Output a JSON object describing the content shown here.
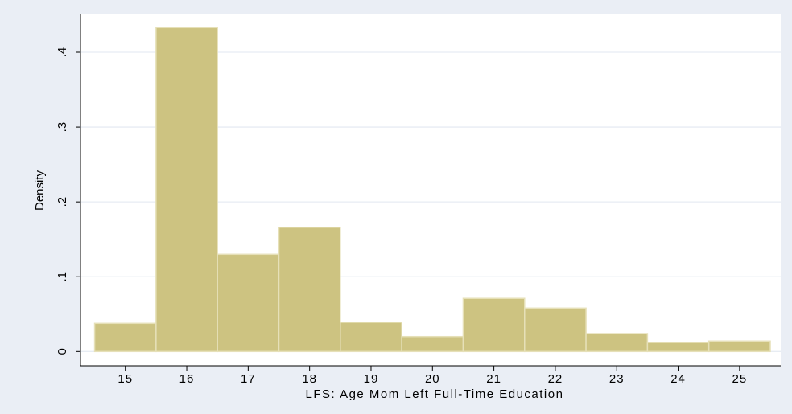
{
  "chart_data": {
    "type": "histogram",
    "x_label": "LFS: Age Mom Left Full-Time Education",
    "y_label": "Density",
    "bins": [
      14.5,
      15.5,
      16.5,
      17.5,
      18.5,
      19.5,
      20.5,
      21.5,
      22.5,
      23.5,
      24.5,
      25.5
    ],
    "values": [
      0.0376,
      0.433,
      0.13,
      0.166,
      0.039,
      0.02,
      0.071,
      0.058,
      0.024,
      0.012,
      0.014
    ],
    "color": "#cdc381",
    "xlim": [
      14.27,
      25.67
    ],
    "xticks": [
      15,
      16,
      17,
      18,
      19,
      20,
      21,
      22,
      23,
      24,
      25
    ],
    "ylim": [
      -0.019,
      0.4505
    ],
    "yticks": [
      0,
      {
        "value": 0.1,
        "label": ".1"
      },
      {
        "value": 0.2,
        "label": ".2"
      },
      {
        "value": 0.3,
        "label": ".3"
      },
      {
        "value": 0.4,
        "label": ".4"
      }
    ],
    "grid": true
  }
}
